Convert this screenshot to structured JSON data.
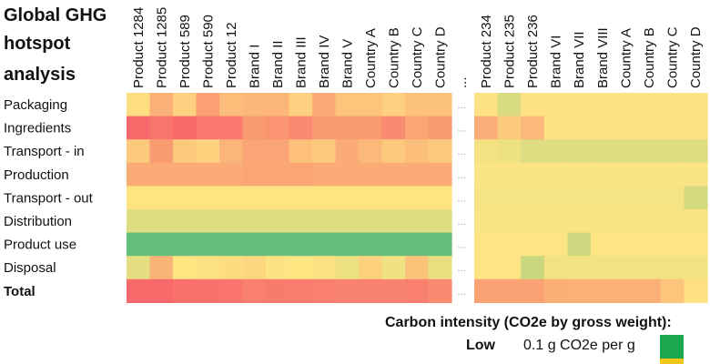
{
  "chart_data": {
    "type": "heatmap",
    "title": "Global GHG hotspot analysis",
    "rows": [
      "Packaging",
      "Ingredients",
      "Transport - in",
      "Production",
      "Transport - out",
      "Distribution",
      "Product use",
      "Disposal",
      "Total"
    ],
    "bold_rows": [
      "Total"
    ],
    "gap_label": "...",
    "blocks": [
      {
        "columns": [
          "Product 1284",
          "Product 1285",
          "Product 589",
          "Product 590",
          "Product 12",
          "Brand I",
          "Brand II",
          "Brand III",
          "Brand IV",
          "Brand V",
          "Country A",
          "Country B",
          "Country C",
          "Country D"
        ],
        "cell_colors": [
          [
            "#fddf81",
            "#fbb077",
            "#fdd17f",
            "#fba073",
            "#fcbc7a",
            "#fcb679",
            "#fcb679",
            "#fdd17f",
            "#fbab76",
            "#fdc47c",
            "#fdc47c",
            "#fdcf7e",
            "#fcc17b",
            "#fcc17b"
          ],
          [
            "#f8696b",
            "#f9766d",
            "#f8696b",
            "#f9776d",
            "#f9796e",
            "#fa9a72",
            "#fa9471",
            "#f98a70",
            "#fa9a72",
            "#fa9a72",
            "#fa9a72",
            "#f98b70",
            "#fba575",
            "#fa9c72"
          ],
          [
            "#fdc97c",
            "#fa9c72",
            "#fdc97c",
            "#fdd37f",
            "#fcb579",
            "#fba475",
            "#fba475",
            "#fdc07b",
            "#fdc97c",
            "#fbab76",
            "#fcb879",
            "#fdca7d",
            "#fcbf7b",
            "#fdca7d"
          ],
          [
            "#fbab76",
            "#fbab76",
            "#fbab76",
            "#fbab76",
            "#fbab76",
            "#fba575",
            "#fba575",
            "#fba575",
            "#fbab76",
            "#fbab76",
            "#fbab76",
            "#fbab76",
            "#fbab76",
            "#fbab76"
          ],
          [
            "#fee582",
            "#fee582",
            "#fee582",
            "#fee582",
            "#fee582",
            "#fee582",
            "#fee582",
            "#fee582",
            "#fee582",
            "#fee582",
            "#fee582",
            "#fee582",
            "#fee582",
            "#fee582"
          ],
          [
            "#dedd81",
            "#dedd81",
            "#dedd81",
            "#dedd81",
            "#dedd81",
            "#dedd81",
            "#dedd81",
            "#dedd81",
            "#dedd81",
            "#dedd81",
            "#dedd81",
            "#dedd81",
            "#dedd81",
            "#dedd81"
          ],
          [
            "#63be7b",
            "#63be7b",
            "#63be7b",
            "#63be7b",
            "#63be7b",
            "#63be7b",
            "#63be7b",
            "#63be7b",
            "#63be7b",
            "#63be7b",
            "#63be7b",
            "#63be7b",
            "#63be7b",
            "#63be7b"
          ],
          [
            "#e4de81",
            "#fbb477",
            "#fee582",
            "#fde081",
            "#fddc80",
            "#fdd680",
            "#fee382",
            "#fee783",
            "#fee382",
            "#ede080",
            "#fdd27f",
            "#f0e182",
            "#fcc37b",
            "#e9df81"
          ],
          [
            "#f8696b",
            "#f8696b",
            "#f8716c",
            "#f8716c",
            "#f9756d",
            "#f9806f",
            "#f97b6e",
            "#f97c6f",
            "#f97f6f",
            "#f98270",
            "#f98270",
            "#f98270",
            "#f97f6f",
            "#f98b70"
          ]
        ]
      },
      {
        "columns": [
          "Product 234",
          "Product 235",
          "Product 236",
          "Brand VI",
          "Brand VII",
          "Brand VIII",
          "Country A",
          "Country B",
          "Country C",
          "Country D"
        ],
        "cell_colors": [
          [
            "#fee283",
            "#d9db80",
            "#fee283",
            "#fee283",
            "#fee283",
            "#fee283",
            "#fee283",
            "#fee283",
            "#fee283",
            "#fee283"
          ],
          [
            "#fbad77",
            "#fdcb7d",
            "#fcb879",
            "#fee283",
            "#fee283",
            "#fee283",
            "#fee283",
            "#fee283",
            "#fee283",
            "#fee283"
          ],
          [
            "#f4e283",
            "#eee182",
            "#dedd81",
            "#dedd81",
            "#dedd81",
            "#dedd81",
            "#dedd81",
            "#dedd81",
            "#dedd81",
            "#dedd81"
          ],
          [
            "#fbe483",
            "#fbe483",
            "#fbe483",
            "#fbe483",
            "#fbe483",
            "#fbe483",
            "#fbe483",
            "#fbe483",
            "#fbe483",
            "#fbe483"
          ],
          [
            "#f6e383",
            "#f6e383",
            "#f6e383",
            "#f6e383",
            "#f6e383",
            "#f6e383",
            "#f6e383",
            "#f6e383",
            "#f6e383",
            "#d4da80"
          ],
          [
            "#f8e483",
            "#f8e483",
            "#f8e483",
            "#f8e483",
            "#f8e483",
            "#f8e483",
            "#f8e483",
            "#f8e483",
            "#f8e483",
            "#f8e483"
          ],
          [
            "#fee483",
            "#fee483",
            "#fee483",
            "#fee483",
            "#d0d980",
            "#fee483",
            "#fee483",
            "#fee483",
            "#fee483",
            "#fee483"
          ],
          [
            "#fee483",
            "#fee483",
            "#c9d77f",
            "#f2e283",
            "#f2e283",
            "#f2e283",
            "#f2e283",
            "#f2e283",
            "#f2e283",
            "#f2e283"
          ],
          [
            "#fba274",
            "#fba274",
            "#fba274",
            "#fcae77",
            "#fcb077",
            "#fcb077",
            "#fcb077",
            "#fcb077",
            "#fdc57c",
            "#fee082"
          ]
        ]
      }
    ],
    "legend": {
      "title": "Carbon intensity (CO2e by gross weight):",
      "low_label": "Low",
      "low_value": "0.1 g CO2e per g",
      "low_color": "#1aa84f",
      "next_color": "#f5c518"
    }
  }
}
